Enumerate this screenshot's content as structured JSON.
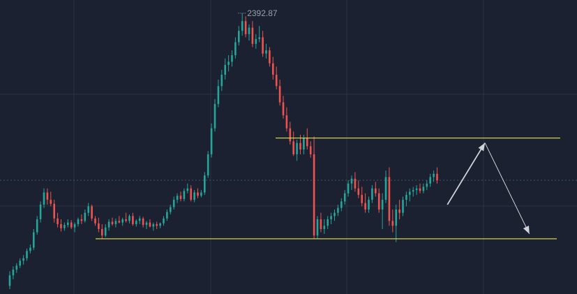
{
  "chart_data": {
    "type": "candlestick",
    "colors": {
      "up": "#26a69a",
      "down": "#ef5350",
      "level": "#e6e64a",
      "arrow": "#cfd3d9",
      "background": "#1b2130"
    },
    "grid": true,
    "annotations": {
      "peak_label": "2392.87",
      "resistance": 2316,
      "support": 2254,
      "projection": [
        {
          "from": {
            "i": 128,
            "price": 2275
          },
          "to": {
            "i": 139,
            "price": 2313
          }
        },
        {
          "from": {
            "i": 139,
            "price": 2313
          },
          "to": {
            "i": 152,
            "price": 2257
          }
        }
      ]
    },
    "candles": [
      [
        2225.0,
        2234.0,
        2223.0,
        2231.5
      ],
      [
        2231.5,
        2237.0,
        2229.0,
        2235.0
      ],
      [
        2235.0,
        2239.0,
        2233.0,
        2237.5
      ],
      [
        2237.5,
        2242.0,
        2236.0,
        2240.5
      ],
      [
        2240.5,
        2244.0,
        2238.0,
        2242.0
      ],
      [
        2242.0,
        2248.0,
        2240.5,
        2246.5
      ],
      [
        2246.5,
        2250.5,
        2245.0,
        2248.5
      ],
      [
        2248.5,
        2260.0,
        2247.0,
        2258.0
      ],
      [
        2258.0,
        2268.0,
        2256.5,
        2266.0
      ],
      [
        2266.0,
        2277.0,
        2264.0,
        2275.0
      ],
      [
        2275.0,
        2285.0,
        2273.0,
        2282.5
      ],
      [
        2282.5,
        2285.0,
        2275.0,
        2278.0
      ],
      [
        2278.0,
        2283.0,
        2274.0,
        2275.5
      ],
      [
        2275.5,
        2278.0,
        2264.0,
        2266.5
      ],
      [
        2266.5,
        2270.0,
        2261.0,
        2263.0
      ],
      [
        2263.0,
        2266.0,
        2258.5,
        2260.5
      ],
      [
        2260.5,
        2264.0,
        2259.0,
        2262.5
      ],
      [
        2262.5,
        2266.0,
        2261.0,
        2264.0
      ],
      [
        2264.0,
        2265.5,
        2260.0,
        2261.0
      ],
      [
        2261.0,
        2264.0,
        2258.0,
        2263.0
      ],
      [
        2263.0,
        2267.0,
        2261.5,
        2266.0
      ],
      [
        2266.0,
        2269.0,
        2263.0,
        2265.0
      ],
      [
        2265.0,
        2272.0,
        2264.0,
        2270.0
      ],
      [
        2270.0,
        2276.0,
        2268.0,
        2274.0
      ],
      [
        2274.0,
        2275.0,
        2265.0,
        2266.5
      ],
      [
        2266.5,
        2268.0,
        2262.0,
        2263.5
      ],
      [
        2263.5,
        2267.0,
        2258.0,
        2260.0
      ],
      [
        2260.0,
        2263.0,
        2254.0,
        2256.0
      ],
      [
        2256.0,
        2263.0,
        2255.0,
        2261.0
      ],
      [
        2261.0,
        2266.0,
        2259.0,
        2264.5
      ],
      [
        2264.5,
        2267.0,
        2262.0,
        2263.0
      ],
      [
        2263.0,
        2266.5,
        2261.0,
        2265.0
      ],
      [
        2265.0,
        2268.0,
        2263.5,
        2264.0
      ],
      [
        2264.0,
        2267.0,
        2262.0,
        2266.0
      ],
      [
        2266.0,
        2270.0,
        2264.0,
        2265.0
      ],
      [
        2265.0,
        2269.0,
        2263.5,
        2268.0
      ],
      [
        2268.0,
        2270.0,
        2262.0,
        2263.0
      ],
      [
        2263.0,
        2266.0,
        2261.5,
        2265.0
      ],
      [
        2265.0,
        2268.0,
        2263.0,
        2266.5
      ],
      [
        2266.5,
        2267.5,
        2261.0,
        2262.5
      ],
      [
        2262.5,
        2265.0,
        2260.0,
        2264.0
      ],
      [
        2264.0,
        2266.0,
        2261.0,
        2261.5
      ],
      [
        2261.5,
        2264.0,
        2259.0,
        2263.0
      ],
      [
        2263.0,
        2264.5,
        2260.0,
        2262.0
      ],
      [
        2262.0,
        2264.0,
        2260.5,
        2263.5
      ],
      [
        2263.5,
        2268.0,
        2262.0,
        2266.5
      ],
      [
        2266.5,
        2272.0,
        2265.0,
        2270.5
      ],
      [
        2270.5,
        2275.0,
        2269.0,
        2273.5
      ],
      [
        2273.5,
        2280.0,
        2272.0,
        2278.0
      ],
      [
        2278.0,
        2282.0,
        2276.0,
        2280.5
      ],
      [
        2280.5,
        2283.0,
        2277.0,
        2278.5
      ],
      [
        2278.5,
        2285.0,
        2277.0,
        2283.5
      ],
      [
        2283.5,
        2288.0,
        2282.0,
        2285.0
      ],
      [
        2285.0,
        2287.0,
        2277.0,
        2278.0
      ],
      [
        2278.0,
        2284.0,
        2276.5,
        2282.5
      ],
      [
        2282.5,
        2285.0,
        2279.0,
        2280.5
      ],
      [
        2280.5,
        2284.0,
        2279.5,
        2282.5
      ],
      [
        2282.5,
        2295.0,
        2281.0,
        2293.0
      ],
      [
        2293.0,
        2308.0,
        2291.5,
        2306.0
      ],
      [
        2306.0,
        2325.0,
        2304.0,
        2322.0
      ],
      [
        2322.0,
        2340.0,
        2320.0,
        2337.0
      ],
      [
        2337.0,
        2352.0,
        2335.0,
        2348.0
      ],
      [
        2348.0,
        2358.0,
        2345.0,
        2355.0
      ],
      [
        2355.0,
        2365.0,
        2352.0,
        2361.0
      ],
      [
        2361.0,
        2367.0,
        2357.0,
        2363.0
      ],
      [
        2363.0,
        2370.0,
        2360.0,
        2367.0
      ],
      [
        2367.0,
        2378.0,
        2365.0,
        2375.0
      ],
      [
        2375.0,
        2385.0,
        2373.0,
        2382.0
      ],
      [
        2382.0,
        2392.87,
        2379.0,
        2388.0
      ],
      [
        2388.0,
        2391.0,
        2378.0,
        2380.0
      ],
      [
        2380.0,
        2386.0,
        2376.0,
        2384.0
      ],
      [
        2384.0,
        2388.0,
        2372.0,
        2374.0
      ],
      [
        2374.0,
        2380.0,
        2371.0,
        2377.0
      ],
      [
        2377.0,
        2385.0,
        2375.0,
        2378.0
      ],
      [
        2378.0,
        2382.0,
        2366.0,
        2368.0
      ],
      [
        2368.0,
        2374.0,
        2365.0,
        2370.0
      ],
      [
        2370.0,
        2372.0,
        2360.0,
        2362.0
      ],
      [
        2362.0,
        2366.0,
        2352.0,
        2355.0
      ],
      [
        2355.0,
        2360.0,
        2346.0,
        2348.0
      ],
      [
        2348.0,
        2352.0,
        2336.0,
        2338.0
      ],
      [
        2338.0,
        2342.0,
        2328.0,
        2330.0
      ],
      [
        2330.0,
        2335.0,
        2320.0,
        2322.0
      ],
      [
        2322.0,
        2326.0,
        2312.0,
        2314.0
      ],
      [
        2314.0,
        2320.0,
        2305.0,
        2306.0
      ],
      [
        2306.0,
        2315.0,
        2302.0,
        2313.0
      ],
      [
        2313.0,
        2318.0,
        2306.0,
        2309.0
      ],
      [
        2309.0,
        2318.0,
        2306.0,
        2316.0
      ],
      [
        2316.0,
        2322.0,
        2309.0,
        2311.0
      ],
      [
        2311.0,
        2314.0,
        2304.0,
        2306.0
      ],
      [
        2306.0,
        2317.0,
        2254.0,
        2256.0
      ],
      [
        2256.0,
        2268.0,
        2254.0,
        2266.0
      ],
      [
        2266.0,
        2270.0,
        2258.0,
        2260.0
      ],
      [
        2260.0,
        2266.0,
        2257.0,
        2262.0
      ],
      [
        2262.0,
        2268.0,
        2260.0,
        2266.0
      ],
      [
        2266.0,
        2270.0,
        2263.0,
        2268.0
      ],
      [
        2268.0,
        2272.0,
        2265.0,
        2270.0
      ],
      [
        2270.0,
        2275.0,
        2268.0,
        2273.0
      ],
      [
        2273.0,
        2279.0,
        2271.0,
        2277.0
      ],
      [
        2277.0,
        2284.0,
        2275.0,
        2282.0
      ],
      [
        2282.0,
        2290.0,
        2280.0,
        2288.0
      ],
      [
        2288.0,
        2293.0,
        2284.0,
        2291.0
      ],
      [
        2291.0,
        2295.0,
        2283.0,
        2285.0
      ],
      [
        2285.0,
        2290.0,
        2279.0,
        2281.0
      ],
      [
        2281.0,
        2286.0,
        2274.0,
        2276.0
      ],
      [
        2276.0,
        2282.0,
        2270.0,
        2272.0
      ],
      [
        2272.0,
        2280.0,
        2270.0,
        2278.0
      ],
      [
        2278.0,
        2287.0,
        2276.0,
        2285.0
      ],
      [
        2285.0,
        2289.0,
        2280.0,
        2282.0
      ],
      [
        2282.0,
        2285.0,
        2270.0,
        2272.0
      ],
      [
        2272.0,
        2282.0,
        2260.0,
        2278.0
      ],
      [
        2278.0,
        2296.0,
        2276.0,
        2292.0
      ],
      [
        2292.0,
        2298.0,
        2262.0,
        2265.0
      ],
      [
        2265.0,
        2272.0,
        2258.0,
        2262.0
      ],
      [
        2262.0,
        2275.0,
        2252.0,
        2272.0
      ],
      [
        2272.0,
        2278.0,
        2266.0,
        2270.0
      ],
      [
        2270.0,
        2280.0,
        2268.0,
        2278.0
      ],
      [
        2278.0,
        2283.0,
        2274.0,
        2281.0
      ],
      [
        2281.0,
        2285.0,
        2277.0,
        2283.0
      ],
      [
        2283.0,
        2286.0,
        2280.0,
        2284.0
      ],
      [
        2284.0,
        2287.0,
        2281.0,
        2285.0
      ],
      [
        2285.0,
        2288.0,
        2282.0,
        2283.5
      ],
      [
        2283.5,
        2288.0,
        2282.0,
        2286.0
      ],
      [
        2286.0,
        2290.0,
        2284.0,
        2288.0
      ],
      [
        2288.0,
        2294.0,
        2286.0,
        2292.0
      ],
      [
        2292.0,
        2296.0,
        2289.0,
        2294.0
      ],
      [
        2294.0,
        2298.0,
        2288.0,
        2290.0
      ]
    ]
  }
}
